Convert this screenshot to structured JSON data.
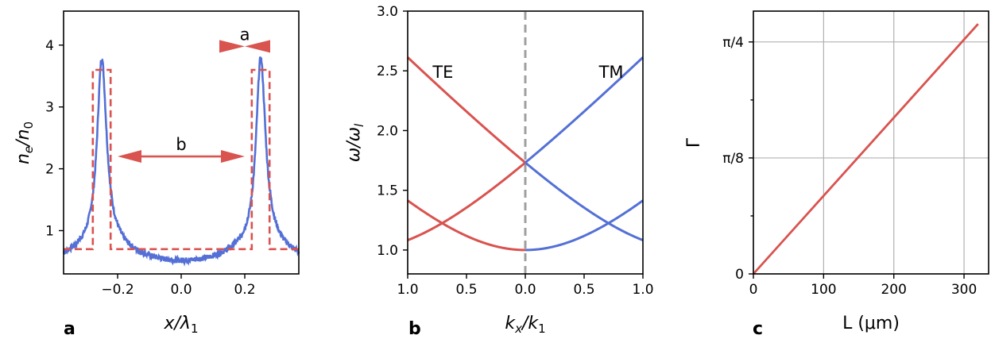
{
  "colors": {
    "red": "#d9534f",
    "blue": "#5470d6",
    "gray": "#a0a0a0"
  },
  "panel_labels": [
    "a",
    "b",
    "c"
  ],
  "chart_data": [
    {
      "type": "line",
      "panel": "a",
      "xlabel": "x/λ",
      "xlabel_sub": "1",
      "ylabel_parts": [
        "n",
        "e",
        "/n",
        "0"
      ],
      "xlim": [
        -0.37,
        0.37
      ],
      "ylim": [
        0.3,
        4.55
      ],
      "xticks": [
        -0.2,
        0.0,
        0.2
      ],
      "xtick_labels": [
        "−0.2",
        "0.0",
        "0.2"
      ],
      "yticks": [
        1,
        2,
        3,
        4
      ],
      "ytick_labels": [
        "1",
        "2",
        "3",
        "4"
      ],
      "annotations": {
        "a": {
          "text": "a",
          "arrow_y": 3.98,
          "x_from": 0.12,
          "x_to": 0.28
        },
        "b": {
          "text": "b",
          "arrow_y": 2.2,
          "x_from": -0.2,
          "x_to": 0.2
        }
      },
      "series": [
        {
          "color": "blue",
          "style": "solid",
          "peaks": [
            -0.25,
            0.25
          ],
          "peak_value": 3.82,
          "baseline_center": 0.49,
          "edge_value": 0.58,
          "noisy": true
        },
        {
          "color": "red",
          "style": "dashed",
          "x": [
            -0.37,
            -0.278,
            -0.278,
            -0.222,
            -0.222,
            0.222,
            0.222,
            0.278,
            0.278,
            0.37
          ],
          "y": [
            0.7,
            0.7,
            3.6,
            3.6,
            0.7,
            0.7,
            3.6,
            3.6,
            0.7,
            0.7
          ]
        }
      ]
    },
    {
      "type": "line",
      "panel": "b",
      "xlabel_parts": [
        "k",
        "x",
        "/k",
        "1"
      ],
      "ylabel_parts": [
        "ω/ω",
        "l"
      ],
      "xlim": [
        -1.0,
        1.0
      ],
      "ylim": [
        0.8,
        3.0
      ],
      "xticks": [
        -1.0,
        -0.5,
        0.0,
        0.5,
        1.0
      ],
      "xtick_labels": [
        "1.0",
        "0.5",
        "0.0",
        "0.5",
        "1.0"
      ],
      "yticks": [
        1.0,
        1.5,
        2.0,
        2.5,
        3.0
      ],
      "ytick_labels": [
        "1.0",
        "1.5",
        "2.0",
        "2.5",
        "3.0"
      ],
      "text_labels": {
        "left": "TE",
        "right": "TM"
      },
      "te_label_pos": [
        -0.7,
        2.6
      ],
      "tm_label_pos": [
        0.73,
        2.6
      ],
      "period": 1.414,
      "series": [
        {
          "name": "TE",
          "color": "red",
          "side": "left",
          "bands": [
            0,
            1,
            -1
          ]
        },
        {
          "name": "TM",
          "color": "blue",
          "side": "right",
          "bands": [
            0,
            -1,
            1
          ]
        },
        {
          "color": "gray",
          "style": "dashed",
          "x": [
            0,
            0
          ],
          "y": [
            0.8,
            3.0
          ]
        }
      ]
    },
    {
      "type": "line",
      "panel": "c",
      "xlabel": "L (μm)",
      "ylabel": "Γ",
      "xlim": [
        0,
        335
      ],
      "ylim": [
        0,
        0.8898
      ],
      "xticks": [
        0,
        100,
        200,
        300
      ],
      "xtick_labels": [
        "0",
        "100",
        "200",
        "300"
      ],
      "yticks": [
        0,
        0.3927,
        0.7854
      ],
      "ytick_labels": [
        "0",
        "π/8",
        "π/4"
      ],
      "minor_yticks": [
        0.19635,
        0.58905
      ],
      "grid": true,
      "series": [
        {
          "color": "red",
          "x": [
            0,
            320
          ],
          "y": [
            0,
            0.8463
          ]
        }
      ]
    }
  ]
}
